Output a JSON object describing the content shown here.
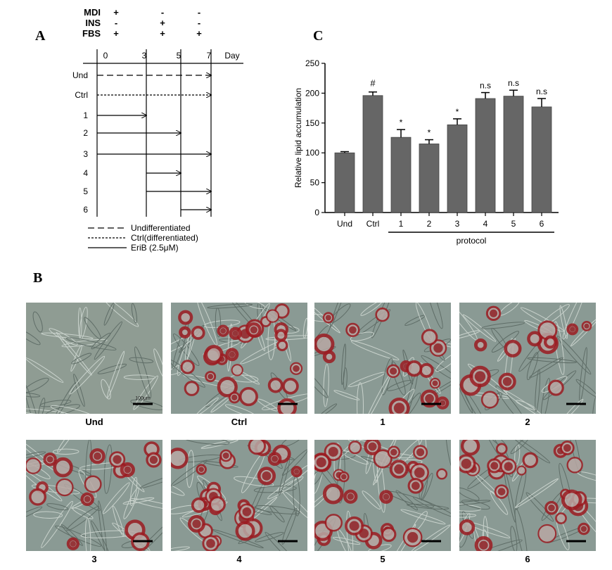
{
  "panels": {
    "a": "A",
    "b": "B",
    "c": "C"
  },
  "protocol_diagram": {
    "treatments": [
      {
        "name": "MDI",
        "signs": [
          "+",
          "-",
          "-"
        ]
      },
      {
        "name": "INS",
        "signs": [
          "-",
          "+",
          "-"
        ]
      },
      {
        "name": "FBS",
        "signs": [
          "+",
          "+",
          "+"
        ]
      }
    ],
    "days": [
      "0",
      "3",
      "5",
      "7"
    ],
    "day_label": "Day",
    "rows": [
      {
        "label": "Und",
        "style": "dashed",
        "start": 0,
        "end": 7
      },
      {
        "label": "Ctrl",
        "style": "dotted",
        "start": 0,
        "end": 7
      },
      {
        "label": "1",
        "style": "solid",
        "start": 0,
        "end": 3
      },
      {
        "label": "2",
        "style": "solid",
        "start": 0,
        "end": 5
      },
      {
        "label": "3",
        "style": "solid",
        "start": 0,
        "end": 7
      },
      {
        "label": "4",
        "style": "solid",
        "start": 3,
        "end": 5
      },
      {
        "label": "5",
        "style": "solid",
        "start": 3,
        "end": 7
      },
      {
        "label": "6",
        "style": "solid",
        "start": 5,
        "end": 7
      }
    ],
    "legend": [
      {
        "style": "dashed",
        "text": "Undifferentiated"
      },
      {
        "style": "dotted",
        "text": "Ctrl(differentiated)"
      },
      {
        "style": "solid",
        "text": "EriB (2.5μM)"
      }
    ]
  },
  "chart_data": {
    "type": "bar",
    "ylabel": "Relative lipid accumulation",
    "ylim": [
      0,
      250
    ],
    "yticks": [
      0,
      50,
      100,
      150,
      200,
      250
    ],
    "categories": [
      "Und",
      "Ctrl",
      "1",
      "2",
      "3",
      "4",
      "5",
      "6"
    ],
    "values": [
      100,
      196,
      126,
      115,
      147,
      191,
      195,
      177
    ],
    "errors": [
      2,
      6,
      13,
      7,
      10,
      10,
      10,
      14
    ],
    "annotations": [
      "",
      "#",
      "*",
      "*",
      "*",
      "n.s",
      "n.s",
      "n.s"
    ],
    "group_label": "protocol",
    "bar_color": "#666666"
  },
  "micrographs": [
    {
      "label": "Und",
      "stain": 0.0,
      "scale_text": "100μm"
    },
    {
      "label": "Ctrl",
      "stain": 0.85,
      "scale_text": ""
    },
    {
      "label": "1",
      "stain": 0.45,
      "scale_text": ""
    },
    {
      "label": "2",
      "stain": 0.4,
      "scale_text": ""
    },
    {
      "label": "3",
      "stain": 0.5,
      "scale_text": ""
    },
    {
      "label": "4",
      "stain": 0.75,
      "scale_text": ""
    },
    {
      "label": "5",
      "stain": 0.8,
      "scale_text": ""
    },
    {
      "label": "6",
      "stain": 0.7,
      "scale_text": ""
    }
  ]
}
